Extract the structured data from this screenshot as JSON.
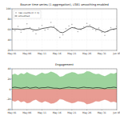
{
  "chart_data": [
    {
      "type": "scatter",
      "title": "Bounce time series (1 aggregation), LSB1 smoothing enabled",
      "x": [
        0,
        1,
        2,
        3,
        4,
        5,
        6,
        7,
        8,
        9,
        10,
        11,
        12,
        13,
        14,
        15,
        16,
        17,
        18,
        19,
        20,
        21,
        22,
        23,
        24,
        25,
        26,
        27,
        28,
        29,
        30,
        31,
        32,
        33,
        34,
        35
      ],
      "xlim": [
        0,
        35
      ],
      "xticks": [
        {
          "value": 0,
          "label": "May 01"
        },
        {
          "value": 5,
          "label": "May 06"
        },
        {
          "value": 10,
          "label": "May 11"
        },
        {
          "value": 15,
          "label": "May 16"
        },
        {
          "value": 20,
          "label": "May 21"
        },
        {
          "value": 25,
          "label": "May 26"
        },
        {
          "value": 30,
          "label": "May 31"
        },
        {
          "value": 35,
          "label": "Jun 05"
        }
      ],
      "ylim": [
        20,
        100
      ],
      "yticks": [
        20,
        40,
        60,
        80,
        100
      ],
      "grid": true,
      "legend": "upper left",
      "series": [
        {
          "name": "raw counts (n = 1)",
          "type": "scatter",
          "marker": "o",
          "color": "#9a9a9a",
          "values": [
            62,
            58,
            66,
            55,
            60,
            71,
            64,
            57,
            52,
            63,
            68,
            59,
            61,
            74,
            66,
            58,
            45,
            50,
            62,
            67,
            70,
            64,
            56,
            60,
            65,
            72,
            69,
            61,
            58,
            63,
            55,
            49,
            57,
            64,
            60,
            66
          ]
        },
        {
          "name": "smoothed",
          "type": "line",
          "line_style": "solid",
          "color": "#000000",
          "values": [
            61,
            61,
            61,
            60,
            61,
            62,
            62,
            60,
            59,
            60,
            62,
            63,
            64,
            65,
            64,
            60,
            55,
            54,
            57,
            61,
            64,
            63,
            61,
            61,
            63,
            66,
            66,
            64,
            61,
            60,
            57,
            55,
            57,
            60,
            61,
            62
          ]
        }
      ]
    },
    {
      "type": "area",
      "title": "Engagement",
      "x": [
        0,
        1,
        2,
        3,
        4,
        5,
        6,
        7,
        8,
        9,
        10,
        11,
        12,
        13,
        14,
        15,
        16,
        17,
        18,
        19,
        20,
        21,
        22,
        23,
        24,
        25,
        26,
        27,
        28,
        29,
        30,
        31,
        32,
        33,
        34,
        35
      ],
      "xlim": [
        0,
        35
      ],
      "xticks": [
        {
          "value": 0,
          "label": "May 01"
        },
        {
          "value": 5,
          "label": "May 06"
        },
        {
          "value": 10,
          "label": "May 11"
        },
        {
          "value": 15,
          "label": "May 16"
        },
        {
          "value": 20,
          "label": "May 21"
        },
        {
          "value": 25,
          "label": "May 26"
        },
        {
          "value": 30,
          "label": "May 31"
        },
        {
          "value": 35,
          "label": "Jun 05"
        }
      ],
      "ylim": [
        -40,
        40
      ],
      "yticks": [
        -40,
        -20,
        0,
        20,
        40
      ],
      "grid": true,
      "series": [
        {
          "type": "area",
          "color": "#7cc47c",
          "values": [
            28,
            30,
            27,
            31,
            29,
            33,
            30,
            28,
            26,
            29,
            32,
            30,
            31,
            34,
            32,
            29,
            24,
            25,
            29,
            31,
            33,
            32,
            29,
            30,
            31,
            35,
            34,
            31,
            29,
            30,
            27,
            25,
            28,
            31,
            30,
            32
          ]
        },
        {
          "type": "area",
          "color": "#e07b6f",
          "values": [
            -22,
            -24,
            -21,
            -25,
            -23,
            -27,
            -26,
            -22,
            -20,
            -24,
            -26,
            -23,
            -25,
            -28,
            -27,
            -24,
            -19,
            -20,
            -23,
            -25,
            -27,
            -26,
            -23,
            -24,
            -25,
            -29,
            -28,
            -26,
            -23,
            -24,
            -22,
            -20,
            -22,
            -25,
            -24,
            -26
          ]
        },
        {
          "type": "line",
          "line_style": "solid",
          "color": "#000000",
          "values": [
            3,
            4,
            3,
            2,
            3,
            4,
            2,
            3,
            4,
            2,
            3,
            3,
            4,
            3,
            2,
            2,
            1,
            2,
            3,
            4,
            3,
            3,
            2,
            3,
            4,
            3,
            3,
            2,
            3,
            3,
            2,
            1,
            3,
            3,
            4,
            3
          ]
        }
      ]
    }
  ]
}
